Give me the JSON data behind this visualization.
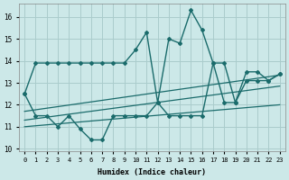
{
  "xlabel": "Humidex (Indice chaleur)",
  "background_color": "#cce8e8",
  "grid_color": "#aacccc",
  "line_color": "#1a6b6b",
  "xlim": [
    -0.5,
    23.5
  ],
  "ylim": [
    9.9,
    16.6
  ],
  "yticks": [
    10,
    11,
    12,
    13,
    14,
    15,
    16
  ],
  "xticks": [
    0,
    1,
    2,
    3,
    4,
    5,
    6,
    7,
    8,
    9,
    10,
    11,
    12,
    13,
    14,
    15,
    16,
    17,
    18,
    19,
    20,
    21,
    22,
    23
  ],
  "series_max_x": [
    0,
    1,
    2,
    3,
    4,
    5,
    6,
    7,
    8,
    9,
    10,
    11,
    12,
    13,
    14,
    15,
    16,
    17,
    18,
    19,
    20,
    21,
    22,
    23
  ],
  "series_max_y": [
    12.5,
    13.9,
    13.9,
    13.9,
    13.9,
    13.9,
    13.9,
    13.9,
    13.9,
    13.9,
    14.5,
    15.3,
    12.1,
    15.0,
    14.8,
    16.3,
    15.4,
    13.9,
    13.9,
    12.1,
    13.5,
    13.5,
    13.1,
    13.4
  ],
  "series_min_x": [
    0,
    1,
    2,
    3,
    4,
    5,
    6,
    7,
    8,
    9,
    10,
    11,
    12,
    13,
    14,
    15,
    16,
    17,
    18,
    19,
    20,
    21,
    22,
    23
  ],
  "series_min_y": [
    12.5,
    11.5,
    11.5,
    11.0,
    11.5,
    10.9,
    10.4,
    10.4,
    11.5,
    11.5,
    11.5,
    11.5,
    12.1,
    11.5,
    11.5,
    11.5,
    11.5,
    13.9,
    12.1,
    12.1,
    13.1,
    13.1,
    13.1,
    13.4
  ],
  "regression_lines": [
    {
      "x": [
        0,
        23
      ],
      "y": [
        11.0,
        12.0
      ]
    },
    {
      "x": [
        0,
        23
      ],
      "y": [
        11.3,
        12.85
      ]
    },
    {
      "x": [
        0,
        23
      ],
      "y": [
        11.7,
        13.35
      ]
    }
  ]
}
